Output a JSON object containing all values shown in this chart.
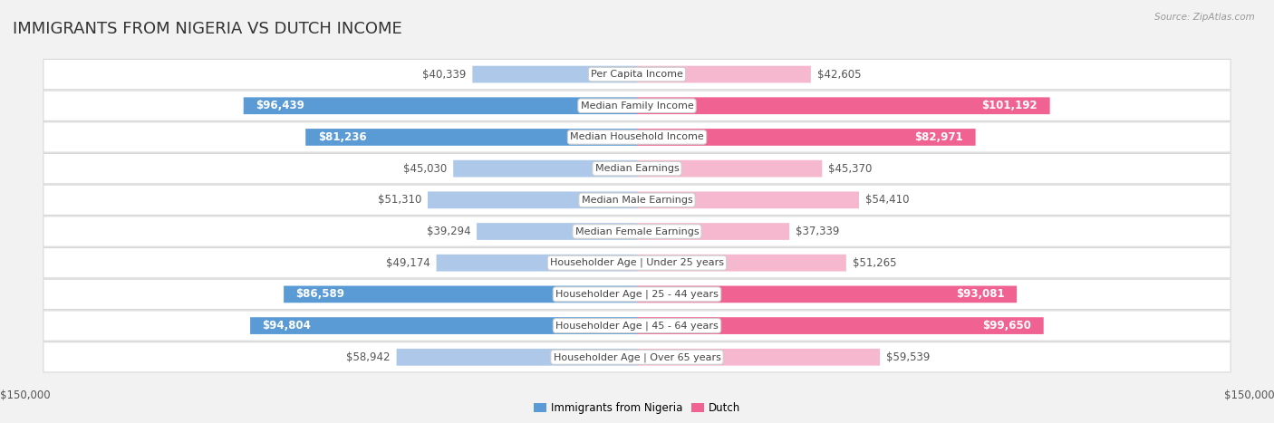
{
  "title": "IMMIGRANTS FROM NIGERIA VS DUTCH INCOME",
  "source": "Source: ZipAtlas.com",
  "categories": [
    "Per Capita Income",
    "Median Family Income",
    "Median Household Income",
    "Median Earnings",
    "Median Male Earnings",
    "Median Female Earnings",
    "Householder Age | Under 25 years",
    "Householder Age | 25 - 44 years",
    "Householder Age | 45 - 64 years",
    "Householder Age | Over 65 years"
  ],
  "nigeria_values": [
    40339,
    96439,
    81236,
    45030,
    51310,
    39294,
    49174,
    86589,
    94804,
    58942
  ],
  "dutch_values": [
    42605,
    101192,
    82971,
    45370,
    54410,
    37339,
    51265,
    93081,
    99650,
    59539
  ],
  "nigeria_labels": [
    "$40,339",
    "$96,439",
    "$81,236",
    "$45,030",
    "$51,310",
    "$39,294",
    "$49,174",
    "$86,589",
    "$94,804",
    "$58,942"
  ],
  "dutch_labels": [
    "$42,605",
    "$101,192",
    "$82,971",
    "$45,370",
    "$54,410",
    "$37,339",
    "$51,265",
    "$93,081",
    "$99,650",
    "$59,539"
  ],
  "nigeria_color_light": "#adc8e8",
  "nigeria_color_dark": "#5b9bd5",
  "dutch_color_light": "#f5b8ce",
  "dutch_color_dark": "#f06292",
  "nigeria_dark_threshold": 60000,
  "dutch_dark_threshold": 60000,
  "max_val": 150000,
  "xlabel_left": "$150,000",
  "xlabel_right": "$150,000",
  "legend_nigeria": "Immigrants from Nigeria",
  "legend_dutch": "Dutch",
  "background_color": "#f2f2f2",
  "row_bg_color": "#ffffff",
  "title_fontsize": 13,
  "label_fontsize": 8.5,
  "cat_fontsize": 8.0
}
